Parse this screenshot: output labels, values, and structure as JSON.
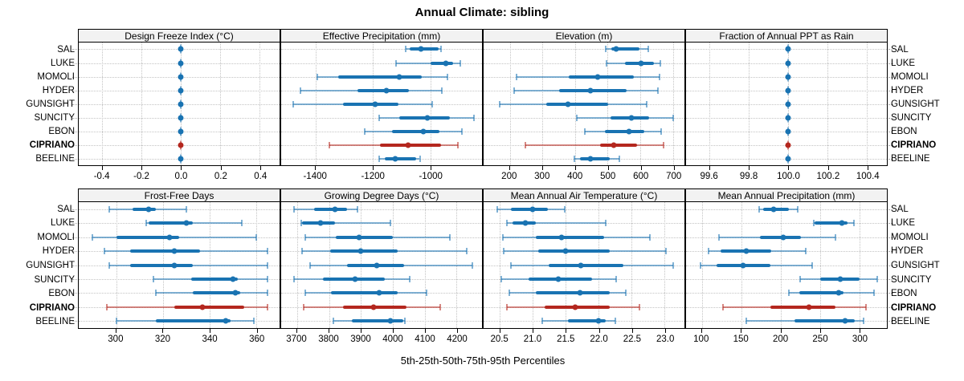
{
  "title": "Annual Climate: sibling",
  "caption": "5th-25th-50th-75th-95th Percentiles",
  "sites": [
    "SAL",
    "LUKE",
    "MOMOLI",
    "HYDER",
    "GUNSIGHT",
    "SUNCITY",
    "EBON",
    "CIPRIANO",
    "BEELINE"
  ],
  "highlight_site": "CIPRIANO",
  "colors": {
    "series": "#1973B2",
    "series_light": "rgba(25,115,178,0.55)",
    "highlight": "#B4271E",
    "highlight_light": "rgba(180,39,30,0.55)",
    "strip_bg": "#F2F2F2",
    "grid": "#C3C3C3",
    "border": "#000000"
  },
  "chart_data": [
    {
      "type": "line",
      "title": "Design Freeze Index (°C)",
      "percentiles": [
        5,
        25,
        50,
        75,
        95
      ],
      "xlim": [
        -0.52,
        0.5
      ],
      "ticks": [
        -0.4,
        -0.2,
        0.0,
        0.2,
        0.4
      ],
      "tick_labels": [
        "-0.4",
        "-0.2",
        "0.0",
        "0.2",
        "0.4"
      ],
      "values": [
        [
          0,
          0,
          0,
          0,
          0
        ],
        [
          0,
          0,
          0,
          0,
          0
        ],
        [
          0,
          0,
          0,
          0,
          0
        ],
        [
          0,
          0,
          0,
          0,
          0
        ],
        [
          0,
          0,
          0,
          0,
          0
        ],
        [
          0,
          0,
          0,
          0,
          0
        ],
        [
          0,
          0,
          0,
          0,
          0
        ],
        [
          0,
          0,
          0,
          0,
          0
        ],
        [
          0,
          0,
          0,
          0,
          0
        ]
      ]
    },
    {
      "type": "line",
      "title": "Effective Precipitation (mm)",
      "percentiles": [
        5,
        25,
        50,
        75,
        95
      ],
      "xlim": [
        -1520,
        -820
      ],
      "ticks": [
        -1400,
        -1200,
        -1000
      ],
      "tick_labels": [
        "-1400",
        "-1200",
        "-1000"
      ],
      "values": [
        [
          -1085,
          -1072,
          -1032,
          -970,
          -962
        ],
        [
          -1120,
          -998,
          -945,
          -922,
          -895
        ],
        [
          -1393,
          -1322,
          -1108,
          -1030,
          -941
        ],
        [
          -1452,
          -1254,
          -1153,
          -1075,
          -959
        ],
        [
          -1478,
          -1304,
          -1193,
          -1110,
          -993
        ],
        [
          -1178,
          -1108,
          -1011,
          -933,
          -848
        ],
        [
          -1230,
          -1134,
          -1025,
          -969,
          -891
        ],
        [
          -1351,
          -1176,
          -1077,
          -964,
          -903
        ],
        [
          -1178,
          -1158,
          -1122,
          -1049,
          -1037
        ]
      ]
    },
    {
      "type": "line",
      "title": "Elevation (m)",
      "percentiles": [
        5,
        25,
        50,
        75,
        95
      ],
      "xlim": [
        120,
        735
      ],
      "ticks": [
        200,
        300,
        400,
        500,
        600,
        700
      ],
      "tick_labels": [
        "200",
        "300",
        "400",
        "500",
        "600",
        "700"
      ],
      "values": [
        [
          493,
          512,
          527,
          597,
          625
        ],
        [
          496,
          553,
          603,
          641,
          662
        ],
        [
          220,
          381,
          470,
          581,
          658
        ],
        [
          214,
          352,
          446,
          557,
          654
        ],
        [
          169,
          313,
          378,
          502,
          619
        ],
        [
          405,
          508,
          573,
          627,
          700
        ],
        [
          429,
          492,
          565,
          611,
          664
        ],
        [
          249,
          476,
          518,
          589,
          672
        ],
        [
          399,
          415,
          446,
          506,
          536
        ]
      ]
    },
    {
      "type": "line",
      "title": "Fraction of Annual PPT as Rain",
      "percentiles": [
        5,
        25,
        50,
        75,
        95
      ],
      "xlim": [
        99.48,
        100.5
      ],
      "ticks": [
        99.6,
        99.8,
        100.0,
        100.2,
        100.4
      ],
      "tick_labels": [
        "99.6",
        "99.8",
        "100.0",
        "100.2",
        "100.4"
      ],
      "values": [
        [
          100,
          100,
          100,
          100,
          100
        ],
        [
          100,
          100,
          100,
          100,
          100
        ],
        [
          100,
          100,
          100,
          100,
          100
        ],
        [
          100,
          100,
          100,
          100,
          100
        ],
        [
          100,
          100,
          100,
          100,
          100
        ],
        [
          100,
          100,
          100,
          100,
          100
        ],
        [
          100,
          100,
          100,
          100,
          100
        ],
        [
          100,
          100,
          100,
          100,
          100
        ],
        [
          100,
          100,
          100,
          100,
          100
        ]
      ]
    },
    {
      "type": "line",
      "title": "Frost-Free Days",
      "percentiles": [
        5,
        25,
        50,
        75,
        95
      ],
      "xlim": [
        284,
        370
      ],
      "ticks": [
        300,
        320,
        340,
        360
      ],
      "tick_labels": [
        "300",
        "320",
        "340",
        "360"
      ],
      "values": [
        [
          297,
          307,
          314,
          317,
          330
        ],
        [
          313,
          314,
          330,
          333,
          354
        ],
        [
          290,
          300,
          323,
          327,
          360
        ],
        [
          295,
          306,
          325,
          336,
          365
        ],
        [
          297,
          306,
          325,
          333,
          365
        ],
        [
          316,
          332,
          350,
          352,
          365
        ],
        [
          317,
          333,
          351,
          353,
          365
        ],
        [
          296,
          325,
          337,
          355,
          365
        ],
        [
          300,
          317,
          347,
          349,
          359
        ]
      ]
    },
    {
      "type": "line",
      "title": "Growing Degree Days (°C)",
      "percentiles": [
        5,
        25,
        50,
        75,
        95
      ],
      "xlim": [
        3650,
        4280
      ],
      "ticks": [
        3700,
        3800,
        3900,
        4000,
        4100,
        4200
      ],
      "tick_labels": [
        "3700",
        "3800",
        "3900",
        "4000",
        "4100",
        "4200"
      ],
      "values": [
        [
          3691,
          3754,
          3820,
          3856,
          3890
        ],
        [
          3714,
          3716,
          3773,
          3820,
          3993
        ],
        [
          3725,
          3822,
          3894,
          4001,
          4179
        ],
        [
          3716,
          3803,
          3900,
          4016,
          4232
        ],
        [
          3741,
          3856,
          3950,
          4035,
          4249
        ],
        [
          3691,
          3781,
          3883,
          3976,
          4054
        ],
        [
          3725,
          3807,
          3957,
          4016,
          4105
        ],
        [
          3720,
          3843,
          3939,
          4042,
          4148
        ],
        [
          3813,
          3873,
          3993,
          4032,
          4038
        ]
      ]
    },
    {
      "type": "line",
      "title": "Mean Annual Air Temperature (°C)",
      "percentiles": [
        5,
        25,
        50,
        75,
        95
      ],
      "xlim": [
        20.25,
        23.3
      ],
      "ticks": [
        20.5,
        21.0,
        21.5,
        22.0,
        22.5,
        23.0
      ],
      "tick_labels": [
        "20.5",
        "21.0",
        "21.5",
        "22.0",
        "22.5",
        "23.0"
      ],
      "values": [
        [
          20.46,
          20.67,
          21.0,
          21.23,
          21.48
        ],
        [
          20.6,
          20.69,
          20.89,
          21.04,
          22.11
        ],
        [
          20.54,
          21.04,
          21.43,
          22.08,
          22.78
        ],
        [
          20.56,
          21.08,
          21.49,
          22.17,
          23.02
        ],
        [
          20.67,
          21.24,
          21.73,
          22.37,
          23.13
        ],
        [
          20.52,
          20.93,
          21.39,
          21.9,
          22.26
        ],
        [
          20.64,
          21.04,
          21.71,
          22.17,
          22.41
        ],
        [
          20.6,
          21.18,
          21.64,
          22.17,
          22.62
        ],
        [
          21.14,
          21.53,
          22.0,
          22.11,
          22.25
        ]
      ]
    },
    {
      "type": "line",
      "title": "Mean Annual Precipitation (mm)",
      "percentiles": [
        5,
        25,
        50,
        75,
        95
      ],
      "xlim": [
        80,
        335
      ],
      "ticks": [
        100,
        150,
        200,
        250,
        300
      ],
      "tick_labels": [
        "100",
        "150",
        "200",
        "250",
        "300"
      ],
      "values": [
        [
          173,
          178,
          191,
          211,
          222
        ],
        [
          242,
          243,
          278,
          285,
          293
        ],
        [
          122,
          174,
          203,
          226,
          270
        ],
        [
          109,
          124,
          156,
          188,
          232
        ],
        [
          98,
          119,
          152,
          187,
          240
        ],
        [
          225,
          250,
          276,
          300,
          323
        ],
        [
          211,
          224,
          274,
          280,
          319
        ],
        [
          127,
          187,
          236,
          270,
          308
        ],
        [
          156,
          218,
          282,
          294,
          305
        ]
      ]
    }
  ]
}
